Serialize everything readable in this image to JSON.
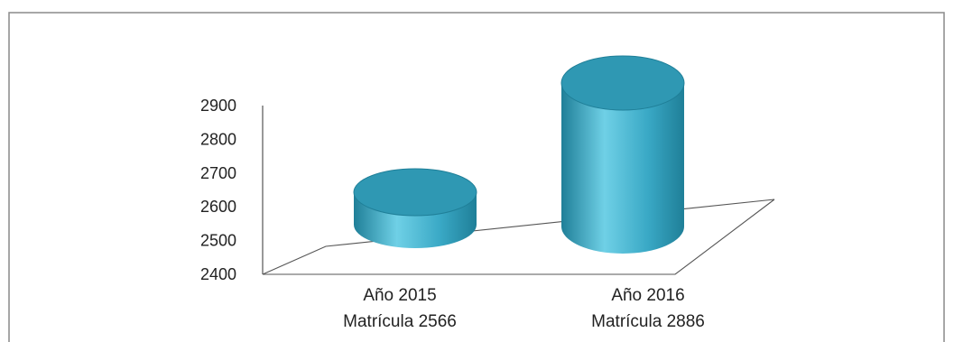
{
  "chart_data": {
    "type": "bar",
    "style": "3d-cylinder",
    "categories": [
      [
        "Año 2015",
        "Matrícula 2566"
      ],
      [
        "Año 2016",
        "Matrícula 2886"
      ]
    ],
    "values": [
      2566,
      2886
    ],
    "yticks": [
      "2400",
      "2500",
      "2600",
      "2700",
      "2800",
      "2900"
    ],
    "ylim": [
      2400,
      2900
    ],
    "title": "",
    "xlabel": "",
    "ylabel": "",
    "grid": false,
    "legend": "none",
    "colors": {
      "bar_body": "#3aa9c6",
      "bar_highlight": "#6fd0e6",
      "bar_shade": "#1f7f98",
      "bar_top": "#2f98b3",
      "axis": "#555555",
      "frame": "#8a8a8a"
    }
  }
}
